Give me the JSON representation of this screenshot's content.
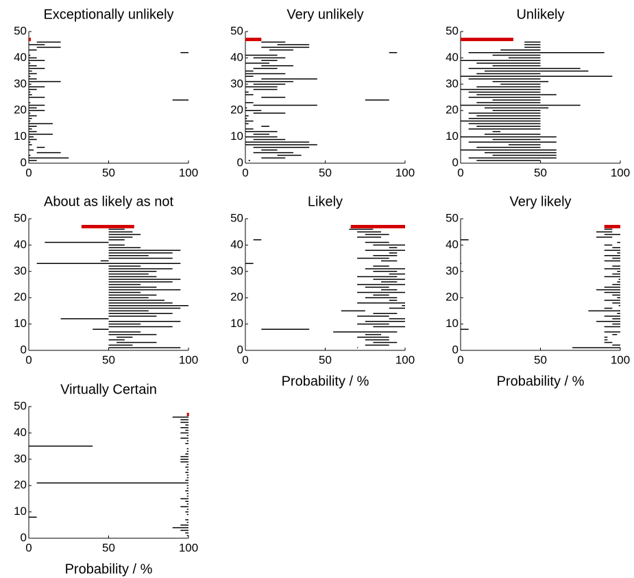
{
  "chart_data": [
    {
      "type": "range",
      "title": "Exceptionally unlikely",
      "xlim": [
        0,
        100
      ],
      "ylim": [
        0,
        50
      ],
      "xticks": [
        0,
        50,
        100
      ],
      "yticks": [
        0,
        10,
        20,
        30,
        40,
        50
      ],
      "color": "#000000",
      "y": [
        1,
        2,
        3,
        4,
        5,
        6,
        7,
        8,
        9,
        10,
        11,
        12,
        13,
        14,
        15,
        16,
        17,
        18,
        19,
        20,
        21,
        22,
        23,
        24,
        25,
        26,
        27,
        28,
        29,
        30,
        31,
        32,
        33,
        34,
        35,
        36,
        37,
        38,
        39,
        40,
        41,
        42,
        43,
        44,
        45,
        46
      ],
      "lo": [
        0,
        0,
        0,
        5,
        0,
        5,
        0,
        0,
        0,
        0,
        0,
        0,
        0,
        0,
        0,
        0,
        0,
        0,
        0,
        0,
        0,
        0,
        0,
        90,
        0,
        0,
        0,
        0,
        0,
        0,
        0,
        0,
        0,
        0,
        0,
        0,
        0,
        0,
        0,
        0,
        0,
        95,
        0,
        5,
        0,
        5
      ],
      "hi": [
        5,
        25,
        1,
        20,
        3,
        10,
        2,
        1,
        5,
        3,
        15,
        5,
        2,
        5,
        15,
        1,
        2,
        5,
        1,
        10,
        5,
        10,
        1,
        100,
        10,
        2,
        1,
        5,
        10,
        1,
        20,
        5,
        1,
        5,
        2,
        10,
        5,
        1,
        10,
        5,
        1,
        100,
        5,
        20,
        10,
        20
      ],
      "reference": {
        "y": 47,
        "lo": 0,
        "hi": 1,
        "color": "#d40000"
      }
    },
    {
      "type": "range",
      "title": "Very unlikely",
      "xlim": [
        0,
        100
      ],
      "ylim": [
        0,
        50
      ],
      "xticks": [
        0,
        50,
        100
      ],
      "yticks": [
        0,
        10,
        20,
        30,
        40,
        50
      ],
      "color": "#000000",
      "y": [
        1,
        2,
        3,
        4,
        5,
        6,
        7,
        8,
        9,
        10,
        11,
        12,
        13,
        14,
        15,
        16,
        17,
        18,
        19,
        20,
        21,
        22,
        23,
        24,
        25,
        26,
        27,
        28,
        29,
        30,
        31,
        32,
        33,
        34,
        35,
        36,
        37,
        38,
        39,
        40,
        41,
        42,
        43,
        44,
        45,
        46
      ],
      "lo": [
        2,
        10,
        20,
        5,
        10,
        5,
        0,
        0,
        5,
        0,
        5,
        0,
        0,
        10,
        0,
        0,
        0,
        0,
        5,
        0,
        0,
        5,
        0,
        75,
        10,
        0,
        0,
        5,
        0,
        5,
        0,
        10,
        0,
        0,
        0,
        5,
        10,
        0,
        10,
        5,
        0,
        90,
        15,
        10,
        20,
        10
      ],
      "hi": [
        3,
        25,
        35,
        30,
        20,
        40,
        45,
        40,
        25,
        20,
        15,
        20,
        5,
        15,
        2,
        5,
        1,
        2,
        25,
        10,
        1,
        45,
        5,
        90,
        25,
        5,
        2,
        20,
        20,
        25,
        30,
        45,
        5,
        25,
        5,
        20,
        30,
        15,
        20,
        25,
        20,
        95,
        30,
        40,
        40,
        25
      ],
      "reference": {
        "y": 47,
        "lo": 0,
        "hi": 10,
        "color": "#d40000"
      }
    },
    {
      "type": "range",
      "title": "Unlikely",
      "xlim": [
        0,
        100
      ],
      "ylim": [
        0,
        50
      ],
      "xticks": [
        0,
        50,
        100
      ],
      "yticks": [
        0,
        10,
        20,
        30,
        40,
        50
      ],
      "color": "#000000",
      "y": [
        1,
        2,
        3,
        4,
        5,
        6,
        7,
        8,
        9,
        10,
        11,
        12,
        13,
        14,
        15,
        16,
        17,
        18,
        19,
        20,
        21,
        22,
        23,
        24,
        25,
        26,
        27,
        28,
        29,
        30,
        31,
        32,
        33,
        34,
        35,
        36,
        37,
        38,
        39,
        40,
        41,
        42,
        43,
        44,
        45,
        46
      ],
      "lo": [
        10,
        5,
        20,
        15,
        0,
        10,
        30,
        5,
        20,
        0,
        15,
        20,
        5,
        10,
        5,
        0,
        5,
        10,
        5,
        20,
        15,
        0,
        10,
        20,
        5,
        10,
        5,
        0,
        10,
        25,
        20,
        5,
        0,
        10,
        15,
        5,
        20,
        10,
        0,
        30,
        20,
        5,
        25,
        40,
        40,
        40
      ],
      "hi": [
        50,
        60,
        60,
        60,
        60,
        50,
        50,
        60,
        50,
        60,
        50,
        25,
        50,
        50,
        50,
        50,
        50,
        50,
        50,
        50,
        55,
        75,
        50,
        50,
        50,
        60,
        50,
        50,
        50,
        50,
        55,
        50,
        95,
        50,
        80,
        75,
        50,
        50,
        50,
        50,
        50,
        90,
        50,
        50,
        50,
        50
      ],
      "reference": {
        "y": 47,
        "lo": 0,
        "hi": 33,
        "color": "#d40000"
      }
    },
    {
      "type": "range",
      "title": "About as likely as not",
      "xlim": [
        0,
        100
      ],
      "ylim": [
        0,
        50
      ],
      "xticks": [
        0,
        50,
        100
      ],
      "yticks": [
        0,
        10,
        20,
        30,
        40,
        50
      ],
      "color": "#000000",
      "y": [
        1,
        2,
        3,
        4,
        5,
        6,
        7,
        8,
        9,
        10,
        11,
        12,
        13,
        14,
        15,
        16,
        17,
        18,
        19,
        20,
        21,
        22,
        23,
        24,
        25,
        26,
        27,
        28,
        29,
        30,
        31,
        32,
        33,
        34,
        35,
        36,
        37,
        38,
        39,
        40,
        41,
        42,
        43,
        44,
        45,
        46
      ],
      "lo": [
        50,
        50,
        55,
        50,
        55,
        50,
        50,
        40,
        50,
        50,
        50,
        20,
        50,
        50,
        50,
        50,
        50,
        50,
        50,
        50,
        50,
        50,
        50,
        50,
        50,
        50,
        50,
        50,
        50,
        50,
        50,
        50,
        5,
        45,
        50,
        50,
        50,
        50,
        50,
        50,
        10,
        50,
        50,
        50,
        50,
        50
      ],
      "hi": [
        95,
        65,
        80,
        60,
        65,
        80,
        70,
        50,
        90,
        70,
        95,
        50,
        80,
        90,
        75,
        95,
        100,
        90,
        85,
        75,
        80,
        70,
        95,
        80,
        70,
        90,
        95,
        80,
        75,
        80,
        90,
        70,
        95,
        50,
        90,
        75,
        90,
        95,
        70,
        60,
        50,
        60,
        65,
        70,
        65,
        60
      ],
      "reference": {
        "y": 47,
        "lo": 33,
        "hi": 66,
        "color": "#d40000"
      }
    },
    {
      "type": "range",
      "title": "Likely",
      "xlabel": "Probability / %",
      "xlim": [
        0,
        100
      ],
      "ylim": [
        0,
        50
      ],
      "xticks": [
        0,
        50,
        100
      ],
      "yticks": [
        0,
        10,
        20,
        30,
        40,
        50
      ],
      "color": "#000000",
      "y": [
        1,
        2,
        3,
        4,
        5,
        6,
        7,
        8,
        9,
        10,
        11,
        12,
        13,
        14,
        15,
        16,
        17,
        18,
        19,
        20,
        21,
        22,
        23,
        24,
        25,
        26,
        27,
        28,
        29,
        30,
        31,
        32,
        33,
        34,
        35,
        36,
        37,
        38,
        39,
        40,
        41,
        42,
        43,
        44,
        45,
        46
      ],
      "lo": [
        70,
        75,
        80,
        75,
        70,
        75,
        55,
        10,
        80,
        70,
        75,
        90,
        70,
        80,
        60,
        90,
        98,
        70,
        90,
        75,
        80,
        70,
        85,
        75,
        70,
        85,
        80,
        70,
        90,
        80,
        75,
        80,
        0,
        85,
        70,
        80,
        90,
        75,
        90,
        80,
        75,
        5,
        70,
        75,
        70,
        65
      ],
      "hi": [
        70.5,
        90,
        95,
        90,
        90,
        85,
        95,
        40,
        100,
        90,
        100,
        100,
        90,
        95,
        75,
        100,
        100,
        100,
        95,
        95,
        90,
        100,
        95,
        90,
        100,
        95,
        100,
        95,
        100,
        95,
        100,
        90,
        5,
        95,
        90,
        95,
        95,
        100,
        95,
        100,
        90,
        10,
        85,
        90,
        85,
        80
      ],
      "reference": {
        "y": 47,
        "lo": 66,
        "hi": 100,
        "color": "#d40000"
      }
    },
    {
      "type": "range",
      "title": "Very likely",
      "xlabel": "Probability / %",
      "xlim": [
        0,
        100
      ],
      "ylim": [
        0,
        50
      ],
      "xticks": [
        0,
        50,
        100
      ],
      "yticks": [
        0,
        10,
        20,
        30,
        40,
        50
      ],
      "color": "#000000",
      "y": [
        1,
        2,
        3,
        4,
        5,
        6,
        7,
        8,
        9,
        10,
        11,
        12,
        13,
        14,
        15,
        16,
        17,
        18,
        19,
        20,
        21,
        22,
        23,
        24,
        25,
        26,
        27,
        28,
        29,
        30,
        31,
        32,
        33,
        34,
        35,
        36,
        37,
        38,
        39,
        40,
        41,
        42,
        43,
        44,
        45,
        46
      ],
      "lo": [
        70,
        95,
        90,
        90,
        90,
        95,
        90,
        0,
        90,
        95,
        85,
        95,
        90,
        98,
        80,
        90,
        99,
        95,
        90,
        98,
        95,
        90,
        85,
        90,
        95,
        98,
        99,
        90,
        95,
        98,
        90,
        95,
        0,
        90,
        95,
        90,
        98,
        90,
        95,
        90,
        98,
        0,
        85,
        90,
        85,
        90
      ],
      "hi": [
        100,
        100,
        95,
        92,
        92,
        98,
        100,
        5,
        100,
        100,
        100,
        100,
        100,
        100,
        100,
        95,
        100,
        100,
        100,
        100,
        100,
        100,
        100,
        100,
        100,
        100,
        100,
        100,
        100,
        100,
        100,
        100,
        0.5,
        100,
        100,
        100,
        100,
        100,
        100,
        95,
        100,
        5,
        95,
        100,
        95,
        95
      ],
      "reference": {
        "y": 47,
        "lo": 90,
        "hi": 100,
        "color": "#d40000"
      }
    },
    {
      "type": "range",
      "title": "Virtually Certain",
      "xlabel": "Probability / %",
      "xlim": [
        0,
        100
      ],
      "ylim": [
        0,
        50
      ],
      "xticks": [
        0,
        50,
        100
      ],
      "yticks": [
        0,
        10,
        20,
        30,
        40,
        50
      ],
      "color": "#000000",
      "y": [
        1,
        2,
        3,
        4,
        5,
        6,
        7,
        8,
        9,
        10,
        11,
        12,
        13,
        14,
        15,
        16,
        17,
        18,
        19,
        20,
        21,
        22,
        23,
        24,
        25,
        26,
        27,
        28,
        29,
        30,
        31,
        32,
        33,
        34,
        35,
        36,
        37,
        38,
        39,
        40,
        41,
        42,
        43,
        44,
        45,
        46
      ],
      "lo": [
        99,
        98,
        95,
        90,
        95,
        99,
        98,
        0,
        99,
        98,
        99,
        95,
        99,
        98,
        95,
        99,
        99,
        98,
        99,
        99,
        5,
        98,
        99,
        99,
        98,
        99,
        98,
        99,
        95,
        95,
        95,
        98,
        99,
        99,
        0,
        98,
        99,
        95,
        99,
        95,
        98,
        95,
        98,
        95,
        95,
        90
      ],
      "hi": [
        100,
        100,
        100,
        100,
        100,
        100,
        100,
        5,
        100,
        100,
        100,
        100,
        100,
        100,
        100,
        100,
        100,
        100,
        100,
        100,
        100,
        100,
        100,
        100,
        100,
        100,
        100,
        100,
        100,
        100,
        100,
        100,
        100,
        100,
        40,
        100,
        100,
        100,
        100,
        100,
        100,
        100,
        100,
        100,
        100,
        100
      ],
      "reference": {
        "y": 47,
        "lo": 99,
        "hi": 100,
        "color": "#d40000"
      }
    }
  ]
}
